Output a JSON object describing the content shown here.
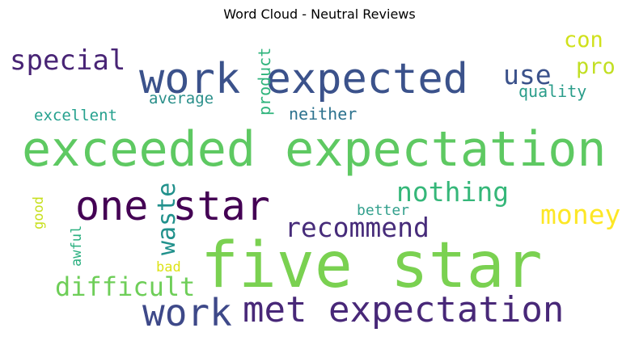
{
  "chart_data": {
    "type": "wordcloud",
    "title": "Word Cloud - Neutral Reviews",
    "words": [
      {
        "text": "five star",
        "color": "#7ad151"
      },
      {
        "text": "exceeded expectation",
        "color": "#5ec962"
      },
      {
        "text": "work expected",
        "color": "#3b528b"
      },
      {
        "text": "one star",
        "color": "#440154"
      },
      {
        "text": "met expectation",
        "color": "#482878"
      },
      {
        "text": "work",
        "color": "#3e4989"
      },
      {
        "text": "special",
        "color": "#482475"
      },
      {
        "text": "nothing",
        "color": "#35b779"
      },
      {
        "text": "recommend",
        "color": "#472c7a"
      },
      {
        "text": "difficult",
        "color": "#6ece58"
      },
      {
        "text": "money",
        "color": "#fde725"
      },
      {
        "text": "use",
        "color": "#3b528b"
      },
      {
        "text": "con",
        "color": "#d0e11c"
      },
      {
        "text": "pro",
        "color": "#c2df23"
      },
      {
        "text": "waste",
        "color": "#21918c"
      },
      {
        "text": "quality",
        "color": "#2a9d8a"
      },
      {
        "text": "neither",
        "color": "#2c728e"
      },
      {
        "text": "average",
        "color": "#2a8f8a"
      },
      {
        "text": "excellent",
        "color": "#25a18e"
      },
      {
        "text": "product",
        "color": "#2fb47c"
      },
      {
        "text": "better",
        "color": "#33a08d"
      },
      {
        "text": "good",
        "color": "#c8e020"
      },
      {
        "text": "awful",
        "color": "#29af7f"
      },
      {
        "text": "bad",
        "color": "#dde318"
      }
    ]
  }
}
